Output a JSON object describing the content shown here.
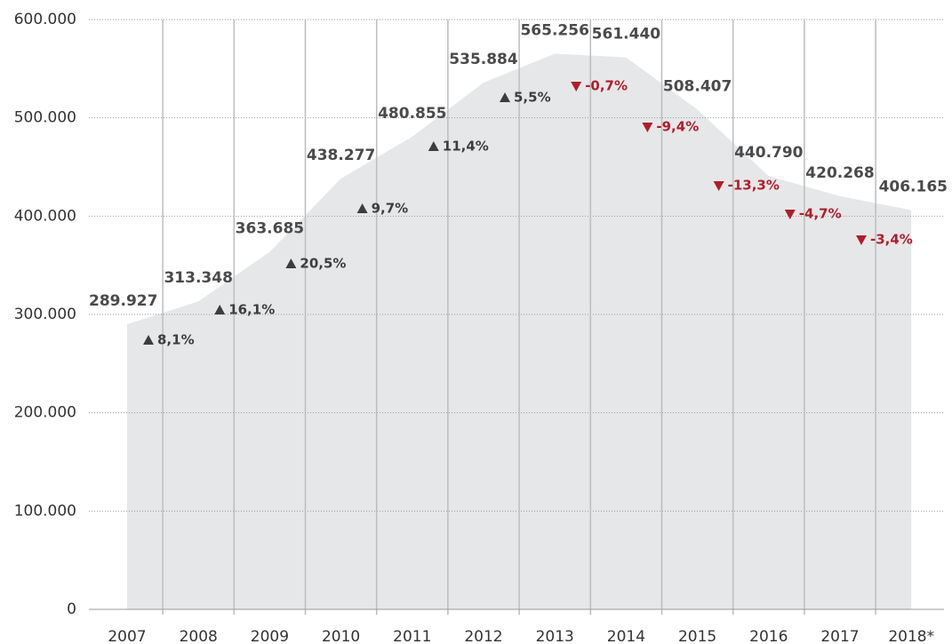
{
  "chart_data": {
    "type": "area",
    "categories": [
      "2007",
      "2008",
      "2009",
      "2010",
      "2011",
      "2012",
      "2013",
      "2014",
      "2015",
      "2016",
      "2017",
      "2018*"
    ],
    "values": [
      289927,
      313348,
      363685,
      438277,
      480855,
      535884,
      565256,
      561440,
      508407,
      440790,
      420268,
      406165
    ],
    "value_labels": [
      "289.927",
      "313.348",
      "363.685",
      "438.277",
      "480.855",
      "535.884",
      "565.256",
      "561.440",
      "508.407",
      "440.790",
      "420.268",
      "406.165"
    ],
    "color": "#e6e7e9",
    "changes": [
      8.1,
      16.1,
      20.5,
      9.7,
      11.4,
      5.5,
      -0.7,
      -9.4,
      -13.3,
      -4.7,
      -3.4
    ],
    "change_labels": [
      "8,1%",
      "16,1%",
      "20,5%",
      "9,7%",
      "11,4%",
      "5,5%",
      "-0,7%",
      "-9,4%",
      "-13,3%",
      "-4,7%",
      "-3,4%"
    ],
    "increase_color": "#3d3d3d",
    "decrease_color": "#b01e2a",
    "ylim": [
      0,
      600000
    ],
    "yticks": [
      0,
      {
        "value": 100000,
        "label": "100.000"
      },
      {
        "value": 200000,
        "label": "200.000"
      },
      {
        "value": 300000,
        "label": "300.000"
      },
      {
        "value": 400000,
        "label": "400.000"
      },
      {
        "value": 500000,
        "label": "500.000"
      },
      {
        "value": 600000,
        "label": "600.000"
      }
    ],
    "grid": true
  }
}
